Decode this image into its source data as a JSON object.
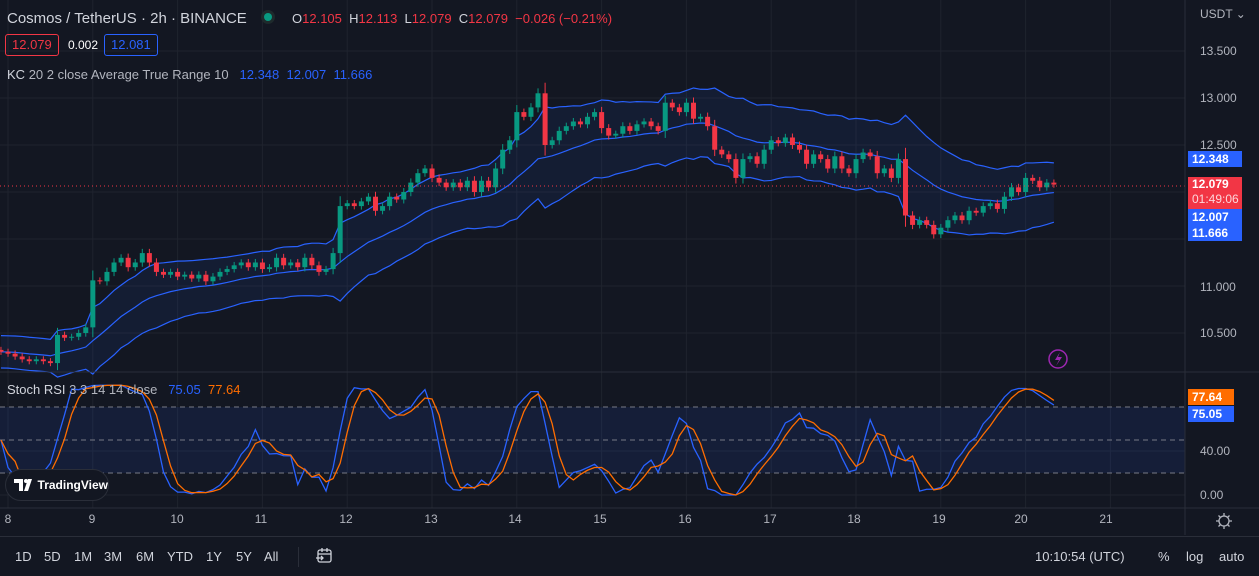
{
  "header": {
    "symbol_title": "Cosmos / TetherUS · 2h · BINANCE",
    "status_color": "#089981",
    "ohlc": {
      "o_label": "O",
      "o": "12.105",
      "h_label": "H",
      "h": "12.113",
      "l_label": "L",
      "l": "12.079",
      "c_label": "C",
      "c": "12.079",
      "change": "−0.026 (−0.21%)"
    },
    "sell_price": "12.079",
    "spread": "0.002",
    "buy_price": "12.081"
  },
  "indicators": {
    "kc": {
      "name": "KC",
      "params": "20 2 close Average True Range 10",
      "upper": "12.348",
      "middle": "12.007",
      "lower": "11.666"
    },
    "stoch": {
      "name": "Stoch RSI",
      "params": "3 3 14 14 close",
      "k": "75.05",
      "d": "77.64"
    }
  },
  "price_axis": {
    "currency": "USDT",
    "ticks": [
      "13.500",
      "13.000",
      "12.500",
      "11.000",
      "10.500"
    ],
    "current_price": "12.079",
    "countdown": "01:49:06"
  },
  "rsi_axis": {
    "ticks": [
      "40.00",
      "0.00"
    ]
  },
  "time_axis": {
    "days": [
      "8",
      "9",
      "10",
      "11",
      "12",
      "13",
      "14",
      "15",
      "16",
      "17",
      "18",
      "19",
      "20",
      "21"
    ]
  },
  "toolbar": {
    "ranges": [
      "1D",
      "5D",
      "1M",
      "3M",
      "6M",
      "YTD",
      "1Y",
      "5Y",
      "All"
    ],
    "clock": "10:10:54 (UTC)",
    "percent": "%",
    "log": "log",
    "auto": "auto"
  },
  "branding": {
    "logo_text": "TradingView"
  },
  "colors": {
    "up": "#089981",
    "down": "#f23645",
    "kc": "#2962ff",
    "k": "#2962ff",
    "d": "#ff6d00",
    "background": "#131722"
  },
  "chart_data": {
    "type": "candlestick",
    "interval": "2h",
    "first_candle_day": 7.917,
    "price_range": [
      10.2,
      13.6
    ],
    "rsi_levels": [
      20,
      50,
      80
    ],
    "closes": [
      10.3,
      10.28,
      10.25,
      10.22,
      10.2,
      10.22,
      10.2,
      10.18,
      10.48,
      10.45,
      10.46,
      10.5,
      10.56,
      11.06,
      11.05,
      11.15,
      11.25,
      11.3,
      11.2,
      11.25,
      11.35,
      11.25,
      11.15,
      11.12,
      11.15,
      11.1,
      11.12,
      11.08,
      11.12,
      11.05,
      11.1,
      11.15,
      11.18,
      11.22,
      11.25,
      11.2,
      11.25,
      11.18,
      11.2,
      11.3,
      11.22,
      11.25,
      11.2,
      11.3,
      11.22,
      11.15,
      11.18,
      11.35,
      11.85,
      11.88,
      11.85,
      11.9,
      11.95,
      11.8,
      11.85,
      11.95,
      11.92,
      12.0,
      12.1,
      12.2,
      12.25,
      12.15,
      12.1,
      12.05,
      12.1,
      12.05,
      12.12,
      12.0,
      12.12,
      12.05,
      12.25,
      12.45,
      12.55,
      12.85,
      12.8,
      12.9,
      13.05,
      12.5,
      12.55,
      12.65,
      12.7,
      12.75,
      12.72,
      12.8,
      12.85,
      12.68,
      12.6,
      12.62,
      12.7,
      12.65,
      12.72,
      12.75,
      12.7,
      12.65,
      12.95,
      12.9,
      12.85,
      12.95,
      12.78,
      12.8,
      12.7,
      12.45,
      12.4,
      12.35,
      12.15,
      12.35,
      12.38,
      12.3,
      12.45,
      12.55,
      12.52,
      12.58,
      12.5,
      12.45,
      12.3,
      12.4,
      12.35,
      12.25,
      12.38,
      12.25,
      12.2,
      12.35,
      12.42,
      12.38,
      12.2,
      12.25,
      12.15,
      12.35,
      11.75,
      11.65,
      11.7,
      11.65,
      11.55,
      11.62,
      11.7,
      11.75,
      11.7,
      11.8,
      11.78,
      11.85,
      11.88,
      11.82,
      11.95,
      12.05,
      12.0,
      12.15,
      12.12,
      12.05,
      12.1,
      12.079
    ]
  }
}
